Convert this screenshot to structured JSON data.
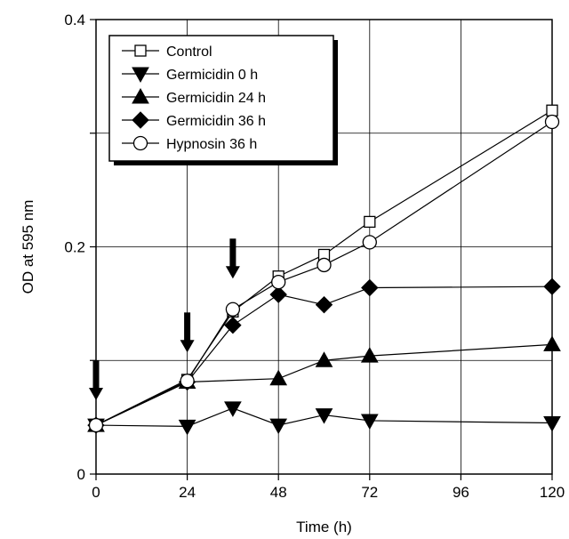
{
  "chart_data": {
    "type": "line",
    "xlabel": "Time (h)",
    "ylabel": "OD at 595 nm",
    "xlim": [
      0,
      120
    ],
    "ylim": [
      0,
      0.4
    ],
    "xticks": [
      0,
      24,
      48,
      72,
      96,
      120
    ],
    "xtick_labels": [
      "0",
      "24",
      "48",
      "72",
      "96",
      "120"
    ],
    "yticks": [
      0,
      0.2,
      0.4
    ],
    "ytick_labels": [
      "0",
      "0.2",
      "0.4"
    ],
    "grid": true,
    "legend_position": "top-left",
    "series": [
      {
        "name": "Control",
        "marker": "open-square",
        "color": "#000000",
        "x": [
          0,
          24,
          36,
          48,
          60,
          72,
          120
        ],
        "y": [
          0.043,
          0.083,
          0.143,
          0.174,
          0.193,
          0.222,
          0.32
        ]
      },
      {
        "name": "Germicidin 0 h",
        "marker": "filled-triangle-down",
        "color": "#000000",
        "x": [
          0,
          24,
          36,
          48,
          60,
          72,
          120
        ],
        "y": [
          0.043,
          0.042,
          0.058,
          0.043,
          0.052,
          0.047,
          0.045
        ]
      },
      {
        "name": "Germicidin 24 h",
        "marker": "filled-triangle-up",
        "color": "#000000",
        "x": [
          0,
          24,
          48,
          60,
          72,
          120
        ],
        "y": [
          0.043,
          0.081,
          0.084,
          0.1,
          0.104,
          0.114
        ]
      },
      {
        "name": "Germicidin 36 h",
        "marker": "filled-diamond",
        "color": "#000000",
        "x": [
          0,
          24,
          36,
          48,
          60,
          72,
          120
        ],
        "y": [
          0.043,
          0.081,
          0.131,
          0.158,
          0.149,
          0.164,
          0.165
        ]
      },
      {
        "name": "Hypnosin 36 h",
        "marker": "open-circle",
        "color": "#000000",
        "x": [
          0,
          24,
          36,
          48,
          60,
          72,
          120
        ],
        "y": [
          0.043,
          0.082,
          0.145,
          0.169,
          0.184,
          0.204,
          0.31
        ]
      }
    ],
    "annotations": [
      {
        "type": "arrow-down",
        "x": 0,
        "y": 0.065
      },
      {
        "type": "arrow-down",
        "x": 24,
        "y": 0.107
      },
      {
        "type": "arrow-down",
        "x": 36,
        "y": 0.172
      }
    ]
  }
}
